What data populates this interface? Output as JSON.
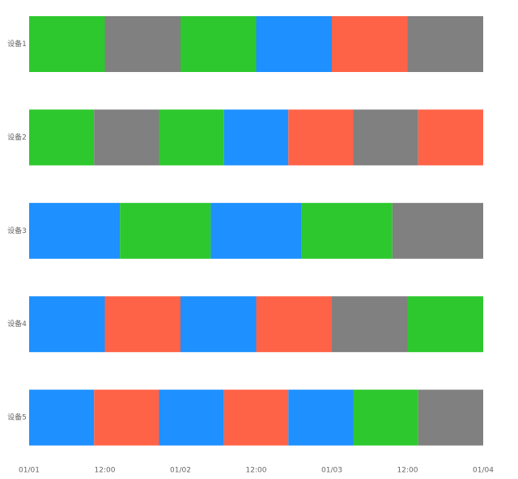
{
  "chart_data": {
    "type": "timeline",
    "categories": [
      "设备1",
      "设备2",
      "设备3",
      "设备4",
      "设备5"
    ],
    "segments": [
      [
        {
          "start": 0,
          "end": 12,
          "color": "#2dc82d"
        },
        {
          "start": 12,
          "end": 24,
          "color": "#808080"
        },
        {
          "start": 24,
          "end": 36,
          "color": "#2dc82d"
        },
        {
          "start": 36,
          "end": 48,
          "color": "#1e90ff"
        },
        {
          "start": 48,
          "end": 60,
          "color": "#ff6347"
        },
        {
          "start": 60,
          "end": 72,
          "color": "#808080"
        }
      ],
      [
        {
          "start": 0,
          "end": 10.3,
          "color": "#2dc82d"
        },
        {
          "start": 10.3,
          "end": 20.6,
          "color": "#808080"
        },
        {
          "start": 20.6,
          "end": 30.9,
          "color": "#2dc82d"
        },
        {
          "start": 30.9,
          "end": 41.1,
          "color": "#1e90ff"
        },
        {
          "start": 41.1,
          "end": 51.4,
          "color": "#ff6347"
        },
        {
          "start": 51.4,
          "end": 61.7,
          "color": "#808080"
        },
        {
          "start": 61.7,
          "end": 72,
          "color": "#ff6347"
        }
      ],
      [
        {
          "start": 0,
          "end": 14.4,
          "color": "#1e90ff"
        },
        {
          "start": 14.4,
          "end": 28.8,
          "color": "#2dc82d"
        },
        {
          "start": 28.8,
          "end": 43.2,
          "color": "#1e90ff"
        },
        {
          "start": 43.2,
          "end": 57.6,
          "color": "#2dc82d"
        },
        {
          "start": 57.6,
          "end": 72,
          "color": "#808080"
        }
      ],
      [
        {
          "start": 0,
          "end": 12,
          "color": "#1e90ff"
        },
        {
          "start": 12,
          "end": 24,
          "color": "#ff6347"
        },
        {
          "start": 24,
          "end": 36,
          "color": "#1e90ff"
        },
        {
          "start": 36,
          "end": 48,
          "color": "#ff6347"
        },
        {
          "start": 48,
          "end": 60,
          "color": "#808080"
        },
        {
          "start": 60,
          "end": 72,
          "color": "#2dc82d"
        }
      ],
      [
        {
          "start": 0,
          "end": 10.3,
          "color": "#1e90ff"
        },
        {
          "start": 10.3,
          "end": 20.6,
          "color": "#ff6347"
        },
        {
          "start": 20.6,
          "end": 30.9,
          "color": "#1e90ff"
        },
        {
          "start": 30.9,
          "end": 41.1,
          "color": "#ff6347"
        },
        {
          "start": 41.1,
          "end": 51.4,
          "color": "#1e90ff"
        },
        {
          "start": 51.4,
          "end": 61.7,
          "color": "#2dc82d"
        },
        {
          "start": 61.7,
          "end": 72,
          "color": "#808080"
        }
      ]
    ],
    "xlim": [
      0,
      72
    ],
    "xticks": [
      {
        "value": 0,
        "label": "01/01"
      },
      {
        "value": 12,
        "label": "12:00"
      },
      {
        "value": 24,
        "label": "01/02"
      },
      {
        "value": 36,
        "label": "12:00"
      },
      {
        "value": 48,
        "label": "01/03"
      },
      {
        "value": 60,
        "label": "12:00"
      },
      {
        "value": 72,
        "label": "01/04"
      }
    ]
  }
}
